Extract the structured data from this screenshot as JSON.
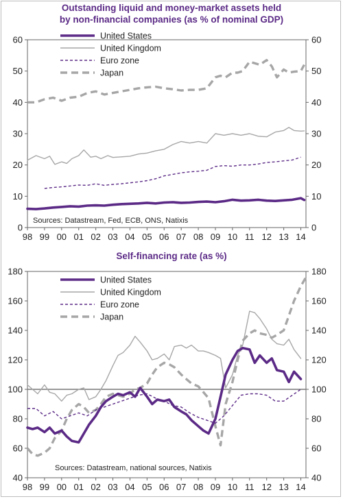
{
  "colors": {
    "purple": "#5b2a86",
    "grey": "#a6a6a6",
    "axis": "#666666"
  },
  "chart_data": [
    {
      "type": "line",
      "title": "Outstanding liquid and money-market assets held by non-financial companies (as % of nominal GDP)",
      "title_lines": [
        "Outstanding liquid and money-market assets held",
        "by non-financial companies (as % of nominal GDP)"
      ],
      "xlabel": "",
      "ylabel": "",
      "x_tick_labels": [
        "98",
        "99",
        "00",
        "01",
        "02",
        "03",
        "04",
        "05",
        "06",
        "07",
        "08",
        "09",
        "10",
        "11",
        "12",
        "13",
        "14"
      ],
      "xlim": [
        1998,
        2014.3
      ],
      "ylim": [
        0,
        60
      ],
      "y_ticks": [
        0,
        10,
        20,
        30,
        40,
        50,
        60
      ],
      "grid": false,
      "legend_position": "top-left",
      "source": "Sources: Datastream, Fed, ECB, ONS, Natixis",
      "series": [
        {
          "name": "United States",
          "style": "thick-purple",
          "x": [
            1998.0,
            1998.5,
            1999.0,
            1999.5,
            2000.0,
            2000.5,
            2001.0,
            2001.5,
            2002.0,
            2002.5,
            2003.0,
            2003.5,
            2004.0,
            2004.5,
            2005.0,
            2005.5,
            2006.0,
            2006.5,
            2007.0,
            2007.5,
            2008.0,
            2008.5,
            2009.0,
            2009.5,
            2010.0,
            2010.5,
            2011.0,
            2011.5,
            2012.0,
            2012.5,
            2013.0,
            2013.5,
            2014.0,
            2014.2
          ],
          "y": [
            6.0,
            5.9,
            6.1,
            6.4,
            6.6,
            6.8,
            6.7,
            7.0,
            7.1,
            7.0,
            7.3,
            7.5,
            7.6,
            7.7,
            7.9,
            7.7,
            8.0,
            8.1,
            7.9,
            8.0,
            8.2,
            8.3,
            8.1,
            8.4,
            8.9,
            8.6,
            8.7,
            8.9,
            8.6,
            8.5,
            8.7,
            8.9,
            9.4,
            8.8
          ]
        },
        {
          "name": "United Kingdom",
          "style": "thin-grey",
          "x": [
            1998.0,
            1998.5,
            1999.0,
            1999.3,
            1999.6,
            2000.0,
            2000.3,
            2000.6,
            2001.0,
            2001.3,
            2001.7,
            2002.0,
            2002.3,
            2002.7,
            2003.0,
            2003.5,
            2004.0,
            2004.5,
            2005.0,
            2005.5,
            2006.0,
            2006.5,
            2007.0,
            2007.5,
            2008.0,
            2008.5,
            2009.0,
            2009.5,
            2010.0,
            2010.5,
            2011.0,
            2011.5,
            2012.0,
            2012.5,
            2013.0,
            2013.3,
            2013.6,
            2014.0,
            2014.2
          ],
          "y": [
            21.5,
            23.0,
            22.0,
            22.8,
            20.2,
            21.0,
            20.5,
            22.0,
            23.0,
            24.8,
            22.5,
            22.8,
            22.0,
            23.0,
            22.4,
            22.6,
            22.8,
            23.5,
            23.8,
            24.5,
            25.0,
            26.5,
            27.5,
            27.0,
            27.5,
            27.0,
            30.0,
            29.5,
            30.0,
            29.5,
            30.0,
            29.2,
            29.0,
            30.5,
            31.0,
            32.0,
            31.0,
            30.8,
            30.9
          ]
        },
        {
          "name": "Euro zone",
          "style": "dashed-purple",
          "x": [
            1999.0,
            1999.5,
            2000.0,
            2000.5,
            2001.0,
            2001.5,
            2002.0,
            2002.5,
            2003.0,
            2003.5,
            2004.0,
            2004.5,
            2005.0,
            2005.5,
            2006.0,
            2006.5,
            2007.0,
            2007.5,
            2008.0,
            2008.5,
            2009.0,
            2009.5,
            2010.0,
            2010.5,
            2011.0,
            2011.5,
            2012.0,
            2012.5,
            2013.0,
            2013.5,
            2014.0
          ],
          "y": [
            12.5,
            12.8,
            13.0,
            13.3,
            13.6,
            13.5,
            14.0,
            13.5,
            13.8,
            14.0,
            14.3,
            14.6,
            15.0,
            15.6,
            16.5,
            17.0,
            17.5,
            17.8,
            18.0,
            18.3,
            19.5,
            19.8,
            19.6,
            20.0,
            20.0,
            20.3,
            20.8,
            21.0,
            21.3,
            21.6,
            22.5
          ]
        },
        {
          "name": "Japan",
          "style": "thick-dashed-grey",
          "x": [
            1998.0,
            1998.5,
            1999.0,
            1999.5,
            2000.0,
            2000.5,
            2001.0,
            2001.5,
            2002.0,
            2002.5,
            2003.0,
            2003.5,
            2004.0,
            2004.5,
            2005.0,
            2005.5,
            2006.0,
            2006.5,
            2007.0,
            2007.5,
            2008.0,
            2008.5,
            2009.0,
            2009.3,
            2009.6,
            2010.0,
            2010.3,
            2010.6,
            2011.0,
            2011.3,
            2011.6,
            2012.0,
            2012.3,
            2012.6,
            2013.0,
            2013.3,
            2013.6,
            2014.0,
            2014.2
          ],
          "y": [
            40.0,
            40.0,
            41.0,
            41.5,
            40.5,
            41.5,
            41.8,
            43.0,
            43.5,
            42.5,
            43.0,
            43.5,
            44.0,
            44.5,
            44.8,
            45.0,
            44.5,
            44.2,
            43.8,
            44.0,
            44.0,
            44.5,
            48.0,
            48.5,
            48.0,
            49.5,
            49.5,
            50.0,
            53.0,
            52.5,
            52.0,
            53.5,
            51.5,
            48.0,
            50.5,
            49.5,
            49.8,
            50.0,
            52.0
          ]
        }
      ]
    },
    {
      "type": "line",
      "title": "Self-financing rate (as %)",
      "title_lines": [
        "Self-financing rate (as %)"
      ],
      "xlabel": "",
      "ylabel": "",
      "x_tick_labels": [
        "98",
        "99",
        "00",
        "01",
        "02",
        "03",
        "04",
        "05",
        "06",
        "07",
        "08",
        "09",
        "10",
        "11",
        "12",
        "13",
        "14"
      ],
      "xlim": [
        1998,
        2014.3
      ],
      "ylim": [
        40,
        180
      ],
      "y_ticks": [
        40,
        60,
        80,
        100,
        120,
        140,
        160,
        180
      ],
      "reference_line": 100,
      "grid": false,
      "legend_position": "top-left",
      "source": "Sources: Datastream, national sources, Natixis",
      "series": [
        {
          "name": "United States",
          "style": "thick-purple",
          "x": [
            1998.0,
            1998.3,
            1998.6,
            1999.0,
            1999.3,
            1999.6,
            2000.0,
            2000.3,
            2000.6,
            2001.0,
            2001.3,
            2001.6,
            2002.0,
            2002.3,
            2002.6,
            2003.0,
            2003.3,
            2003.6,
            2004.0,
            2004.3,
            2004.6,
            2005.0,
            2005.3,
            2005.6,
            2006.0,
            2006.3,
            2006.6,
            2007.0,
            2007.3,
            2007.6,
            2008.0,
            2008.3,
            2008.6,
            2009.0,
            2009.3,
            2009.6,
            2010.0,
            2010.3,
            2010.6,
            2011.0,
            2011.3,
            2011.6,
            2012.0,
            2012.3,
            2012.6,
            2013.0,
            2013.3,
            2013.6,
            2014.0
          ],
          "y": [
            74,
            73,
            74,
            71,
            74,
            70,
            72,
            68,
            65,
            64,
            70,
            76,
            82,
            88,
            92,
            95,
            97,
            96,
            98,
            95,
            101,
            95,
            90,
            93,
            92,
            93,
            88,
            85,
            83,
            79,
            75,
            72,
            70,
            80,
            95,
            110,
            120,
            126,
            128,
            127,
            118,
            123,
            118,
            121,
            113,
            112,
            105,
            112,
            107
          ]
        },
        {
          "name": "United Kingdom",
          "style": "thin-grey",
          "x": [
            1998.0,
            1998.3,
            1998.6,
            1999.0,
            1999.3,
            1999.6,
            2000.0,
            2000.3,
            2000.6,
            2001.0,
            2001.3,
            2001.6,
            2002.0,
            2002.3,
            2002.6,
            2003.0,
            2003.3,
            2003.6,
            2004.0,
            2004.3,
            2004.6,
            2005.0,
            2005.3,
            2005.6,
            2006.0,
            2006.3,
            2006.6,
            2007.0,
            2007.3,
            2007.6,
            2008.0,
            2008.3,
            2008.6,
            2009.0,
            2009.3,
            2009.6,
            2010.0,
            2010.3,
            2010.6,
            2011.0,
            2011.3,
            2011.6,
            2012.0,
            2012.3,
            2012.6,
            2013.0,
            2013.3,
            2013.6,
            2014.0
          ],
          "y": [
            103,
            100,
            97,
            103,
            98,
            97,
            92,
            96,
            97,
            100,
            101,
            93,
            95,
            100,
            106,
            116,
            123,
            125,
            130,
            136,
            132,
            126,
            120,
            121,
            124,
            120,
            129,
            130,
            128,
            130,
            126,
            126,
            125,
            123,
            121,
            101,
            110,
            123,
            130,
            153,
            152,
            148,
            141,
            134,
            131,
            130,
            134,
            127,
            121
          ]
        },
        {
          "name": "Euro zone",
          "style": "dashed-purple",
          "x": [
            1998.0,
            1998.5,
            1999.0,
            1999.5,
            2000.0,
            2000.5,
            2001.0,
            2001.5,
            2002.0,
            2002.5,
            2003.0,
            2003.5,
            2004.0,
            2004.5,
            2005.0,
            2005.5,
            2006.0,
            2006.5,
            2007.0,
            2007.5,
            2008.0,
            2008.5,
            2009.0,
            2009.5,
            2010.0,
            2010.5,
            2011.0,
            2011.5,
            2012.0,
            2012.5,
            2013.0,
            2013.5,
            2014.0
          ],
          "y": [
            87,
            87,
            82,
            85,
            80,
            82,
            84,
            82,
            86,
            88,
            90,
            92,
            94,
            96,
            97,
            94,
            92,
            89,
            88,
            84,
            81,
            79,
            77,
            82,
            89,
            96,
            97,
            97,
            96,
            92,
            92,
            96,
            100
          ]
        },
        {
          "name": "Japan",
          "style": "thick-dashed-grey",
          "x": [
            1998.0,
            1998.3,
            1998.6,
            1999.0,
            1999.3,
            1999.6,
            2000.0,
            2000.3,
            2000.6,
            2001.0,
            2001.3,
            2001.6,
            2002.0,
            2002.3,
            2002.6,
            2003.0,
            2003.3,
            2003.6,
            2004.0,
            2004.3,
            2004.6,
            2005.0,
            2005.3,
            2005.6,
            2006.0,
            2006.3,
            2006.6,
            2007.0,
            2007.3,
            2007.6,
            2008.0,
            2008.3,
            2008.6,
            2009.0,
            2009.3,
            2009.6,
            2010.0,
            2010.3,
            2010.6,
            2011.0,
            2011.3,
            2011.6,
            2012.0,
            2012.3,
            2012.6,
            2013.0,
            2013.3,
            2013.6,
            2014.0,
            2014.3
          ],
          "y": [
            60,
            56,
            55,
            57,
            60,
            67,
            72,
            80,
            86,
            90,
            88,
            84,
            86,
            90,
            95,
            97,
            96,
            95,
            97,
            100,
            101,
            104,
            110,
            115,
            118,
            117,
            115,
            110,
            107,
            104,
            102,
            98,
            94,
            75,
            62,
            90,
            105,
            120,
            133,
            138,
            140,
            138,
            137,
            135,
            137,
            140,
            150,
            160,
            170,
            176
          ]
        }
      ]
    }
  ]
}
